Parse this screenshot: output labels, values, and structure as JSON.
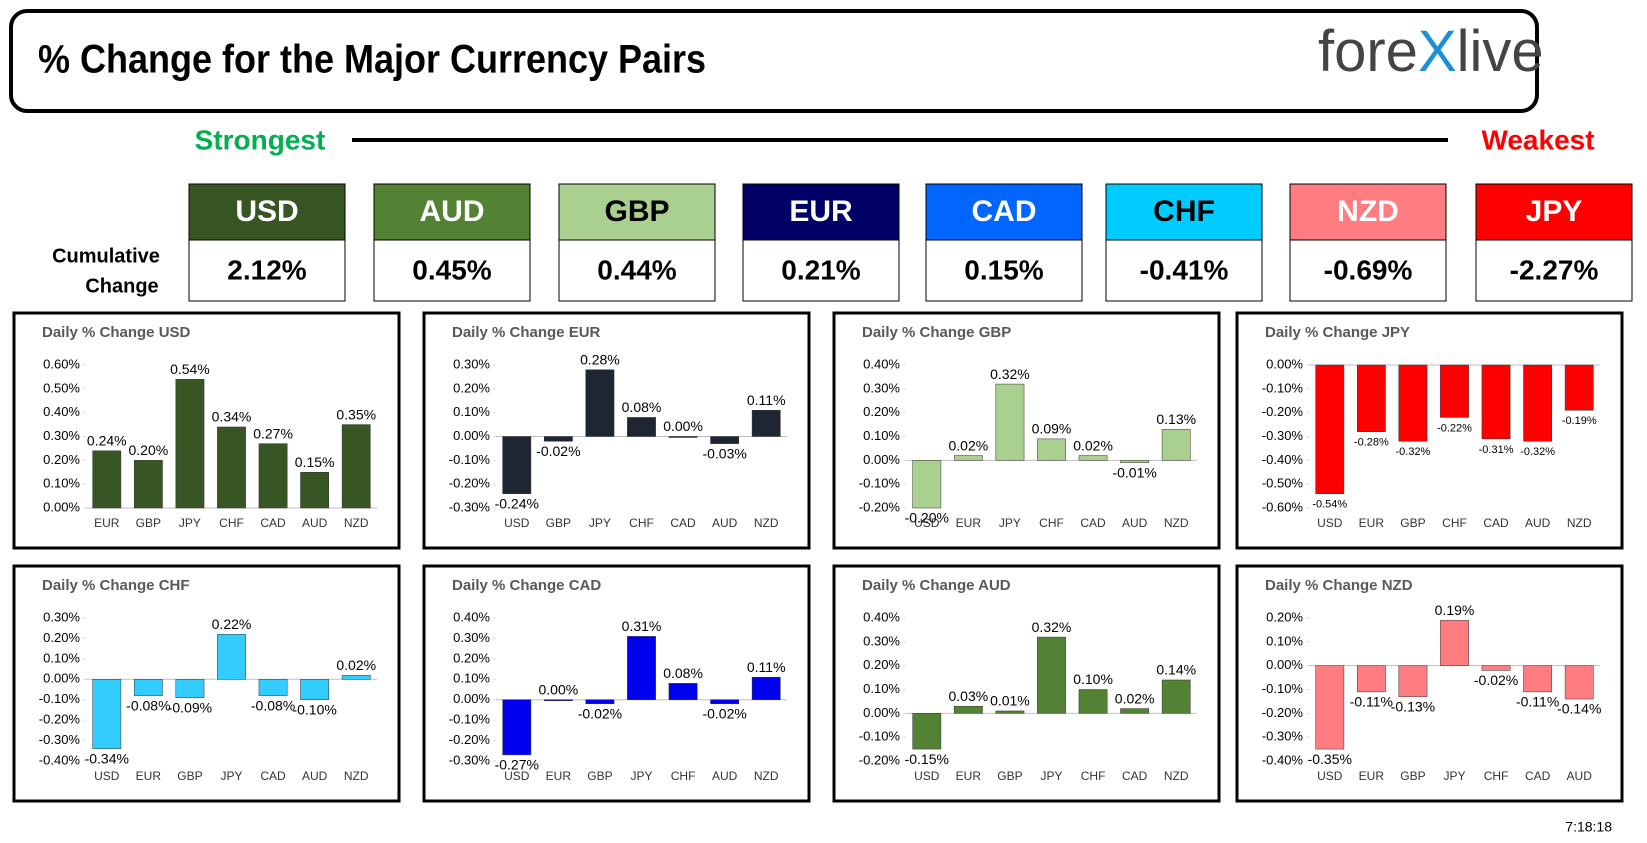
{
  "header": {
    "title": "% Change for the Major Currency Pairs",
    "logo": [
      "fore",
      "X",
      "live"
    ]
  },
  "scale": {
    "strongest": "Strongest",
    "weakest": "Weakest"
  },
  "cumulative": {
    "label": [
      "Cumulative",
      "Change"
    ],
    "currencies": [
      {
        "name": "USD",
        "value": "2.12%",
        "color": "#375623",
        "text_color": "#ffffff"
      },
      {
        "name": "AUD",
        "value": "0.45%",
        "color": "#548235",
        "text_color": "#ffffff"
      },
      {
        "name": "GBP",
        "value": "0.44%",
        "color": "#a9d08e",
        "text_color": "#000000"
      },
      {
        "name": "EUR",
        "value": "0.21%",
        "color": "#000066",
        "text_color": "#ffffff"
      },
      {
        "name": "CAD",
        "value": "0.15%",
        "color": "#0066ff",
        "text_color": "#ffffff"
      },
      {
        "name": "CHF",
        "value": "-0.41%",
        "color": "#00ccff",
        "text_color": "#000000"
      },
      {
        "name": "NZD",
        "value": "-0.69%",
        "color": "#ff7c80",
        "text_color": "#ffffff"
      },
      {
        "name": "JPY",
        "value": "-2.27%",
        "color": "#ff0000",
        "text_color": "#ffffff"
      }
    ]
  },
  "chart_data": [
    {
      "type": "bar",
      "title": "Daily % Change USD",
      "color": "#375623",
      "categories": [
        "EUR",
        "GBP",
        "JPY",
        "CHF",
        "CAD",
        "AUD",
        "NZD"
      ],
      "values": [
        0.24,
        0.2,
        0.54,
        0.34,
        0.27,
        0.15,
        0.35
      ],
      "value_labels": [
        "0.24%",
        "0.20%",
        "0.54%",
        "0.34%",
        "0.27%",
        "0.15%",
        "0.35%"
      ],
      "ylim": [
        0,
        0.6
      ],
      "yticks": [
        {
          "value": 0,
          "label": "0.00%"
        },
        {
          "value": 0.1,
          "label": "0.10%"
        },
        {
          "value": 0.2,
          "label": "0.20%"
        },
        {
          "value": 0.3,
          "label": "0.30%"
        },
        {
          "value": 0.4,
          "label": "0.40%"
        },
        {
          "value": 0.5,
          "label": "0.50%"
        },
        {
          "value": 0.6,
          "label": "0.60%"
        }
      ]
    },
    {
      "type": "bar",
      "title": "Daily % Change EUR",
      "color": "#1e2634",
      "categories": [
        "USD",
        "GBP",
        "JPY",
        "CHF",
        "CAD",
        "AUD",
        "NZD"
      ],
      "values": [
        -0.24,
        -0.02,
        0.28,
        0.08,
        0.0,
        -0.03,
        0.11
      ],
      "value_labels": [
        "-0.24%",
        "-0.02%",
        "0.28%",
        "0.08%",
        "0.00%",
        "-0.03%",
        "0.11%"
      ],
      "ylim": [
        -0.3,
        0.3
      ],
      "yticks": [
        {
          "value": -0.3,
          "label": "-0.30%"
        },
        {
          "value": -0.2,
          "label": "-0.20%"
        },
        {
          "value": -0.1,
          "label": "-0.10%"
        },
        {
          "value": 0,
          "label": "0.00%"
        },
        {
          "value": 0.1,
          "label": "0.10%"
        },
        {
          "value": 0.2,
          "label": "0.20%"
        },
        {
          "value": 0.3,
          "label": "0.30%"
        }
      ]
    },
    {
      "type": "bar",
      "title": "Daily % Change GBP",
      "color": "#a9d08e",
      "categories": [
        "USD",
        "EUR",
        "JPY",
        "CHF",
        "CAD",
        "AUD",
        "NZD"
      ],
      "values": [
        -0.2,
        0.02,
        0.32,
        0.09,
        0.02,
        -0.01,
        0.13
      ],
      "value_labels": [
        "-0.20%",
        "0.02%",
        "0.32%",
        "0.09%",
        "0.02%",
        "-0.01%",
        "0.13%"
      ],
      "ylim": [
        -0.2,
        0.4
      ],
      "yticks": [
        {
          "value": -0.2,
          "label": "-0.20%"
        },
        {
          "value": -0.1,
          "label": "-0.10%"
        },
        {
          "value": 0,
          "label": "0.00%"
        },
        {
          "value": 0.1,
          "label": "0.10%"
        },
        {
          "value": 0.2,
          "label": "0.20%"
        },
        {
          "value": 0.3,
          "label": "0.30%"
        },
        {
          "value": 0.4,
          "label": "0.40%"
        }
      ]
    },
    {
      "type": "bar",
      "title": "Daily % Change JPY",
      "color": "#ff0000",
      "categories": [
        "USD",
        "EUR",
        "GBP",
        "CHF",
        "CAD",
        "AUD",
        "NZD"
      ],
      "values": [
        -0.54,
        -0.28,
        -0.32,
        -0.22,
        -0.31,
        -0.32,
        -0.19
      ],
      "value_labels": [
        "-0.54%",
        "-0.28%",
        "-0.32%",
        "-0.22%",
        "-0.31%",
        "-0.32%",
        "-0.19%"
      ],
      "ylim": [
        -0.6,
        0
      ],
      "yticks": [
        {
          "value": -0.6,
          "label": "-0.60%"
        },
        {
          "value": -0.5,
          "label": "-0.50%"
        },
        {
          "value": -0.4,
          "label": "-0.40%"
        },
        {
          "value": -0.3,
          "label": "-0.30%"
        },
        {
          "value": -0.2,
          "label": "-0.20%"
        },
        {
          "value": -0.1,
          "label": "-0.10%"
        },
        {
          "value": 0,
          "label": "0.00%"
        }
      ]
    },
    {
      "type": "bar",
      "title": "Daily % Change CHF",
      "color": "#33ccff",
      "categories": [
        "USD",
        "EUR",
        "GBP",
        "JPY",
        "CAD",
        "AUD",
        "NZD"
      ],
      "values": [
        -0.34,
        -0.08,
        -0.09,
        0.22,
        -0.08,
        -0.1,
        0.02
      ],
      "value_labels": [
        "-0.34%",
        "-0.08%",
        "-0.09%",
        "0.22%",
        "-0.08%",
        "-0.10%",
        "0.02%"
      ],
      "ylim": [
        -0.4,
        0.3
      ],
      "yticks": [
        {
          "value": -0.4,
          "label": "-0.40%"
        },
        {
          "value": -0.3,
          "label": "-0.30%"
        },
        {
          "value": -0.2,
          "label": "-0.20%"
        },
        {
          "value": -0.1,
          "label": "-0.10%"
        },
        {
          "value": 0,
          "label": "0.00%"
        },
        {
          "value": 0.1,
          "label": "0.10%"
        },
        {
          "value": 0.2,
          "label": "0.20%"
        },
        {
          "value": 0.3,
          "label": "0.30%"
        }
      ]
    },
    {
      "type": "bar",
      "title": "Daily % Change CAD",
      "color": "#0000ee",
      "categories": [
        "USD",
        "EUR",
        "GBP",
        "JPY",
        "CHF",
        "AUD",
        "NZD"
      ],
      "values": [
        -0.27,
        0.0,
        -0.02,
        0.31,
        0.08,
        -0.02,
        0.11
      ],
      "value_labels": [
        "-0.27%",
        "0.00%",
        "-0.02%",
        "0.31%",
        "0.08%",
        "-0.02%",
        "0.11%"
      ],
      "ylim": [
        -0.3,
        0.4
      ],
      "yticks": [
        {
          "value": -0.3,
          "label": "-0.30%"
        },
        {
          "value": -0.2,
          "label": "-0.20%"
        },
        {
          "value": -0.1,
          "label": "-0.10%"
        },
        {
          "value": 0,
          "label": "0.00%"
        },
        {
          "value": 0.1,
          "label": "0.10%"
        },
        {
          "value": 0.2,
          "label": "0.20%"
        },
        {
          "value": 0.3,
          "label": "0.30%"
        },
        {
          "value": 0.4,
          "label": "0.40%"
        }
      ]
    },
    {
      "type": "bar",
      "title": "Daily % Change AUD",
      "color": "#548235",
      "categories": [
        "USD",
        "EUR",
        "GBP",
        "JPY",
        "CHF",
        "CAD",
        "NZD"
      ],
      "values": [
        -0.15,
        0.03,
        0.01,
        0.32,
        0.1,
        0.02,
        0.14
      ],
      "value_labels": [
        "-0.15%",
        "0.03%",
        "0.01%",
        "0.32%",
        "0.10%",
        "0.02%",
        "0.14%"
      ],
      "ylim": [
        -0.2,
        0.4
      ],
      "yticks": [
        {
          "value": -0.2,
          "label": "-0.20%"
        },
        {
          "value": -0.1,
          "label": "-0.10%"
        },
        {
          "value": 0,
          "label": "0.00%"
        },
        {
          "value": 0.1,
          "label": "0.10%"
        },
        {
          "value": 0.2,
          "label": "0.20%"
        },
        {
          "value": 0.3,
          "label": "0.30%"
        },
        {
          "value": 0.4,
          "label": "0.40%"
        }
      ]
    },
    {
      "type": "bar",
      "title": "Daily % Change NZD",
      "color": "#ff7c80",
      "categories": [
        "USD",
        "EUR",
        "GBP",
        "JPY",
        "CHF",
        "CAD",
        "AUD"
      ],
      "values": [
        -0.35,
        -0.11,
        -0.13,
        0.19,
        -0.02,
        -0.11,
        -0.14
      ],
      "value_labels": [
        "-0.35%",
        "-0.11%",
        "-0.13%",
        "0.19%",
        "-0.02%",
        "-0.11%",
        "-0.14%"
      ],
      "ylim": [
        -0.4,
        0.2
      ],
      "yticks": [
        {
          "value": -0.4,
          "label": "-0.40%"
        },
        {
          "value": -0.3,
          "label": "-0.30%"
        },
        {
          "value": -0.2,
          "label": "-0.20%"
        },
        {
          "value": -0.1,
          "label": "-0.10%"
        },
        {
          "value": 0,
          "label": "0.00%"
        },
        {
          "value": 0.1,
          "label": "0.10%"
        },
        {
          "value": 0.2,
          "label": "0.20%"
        }
      ]
    }
  ],
  "timestamp": "7:18:18"
}
